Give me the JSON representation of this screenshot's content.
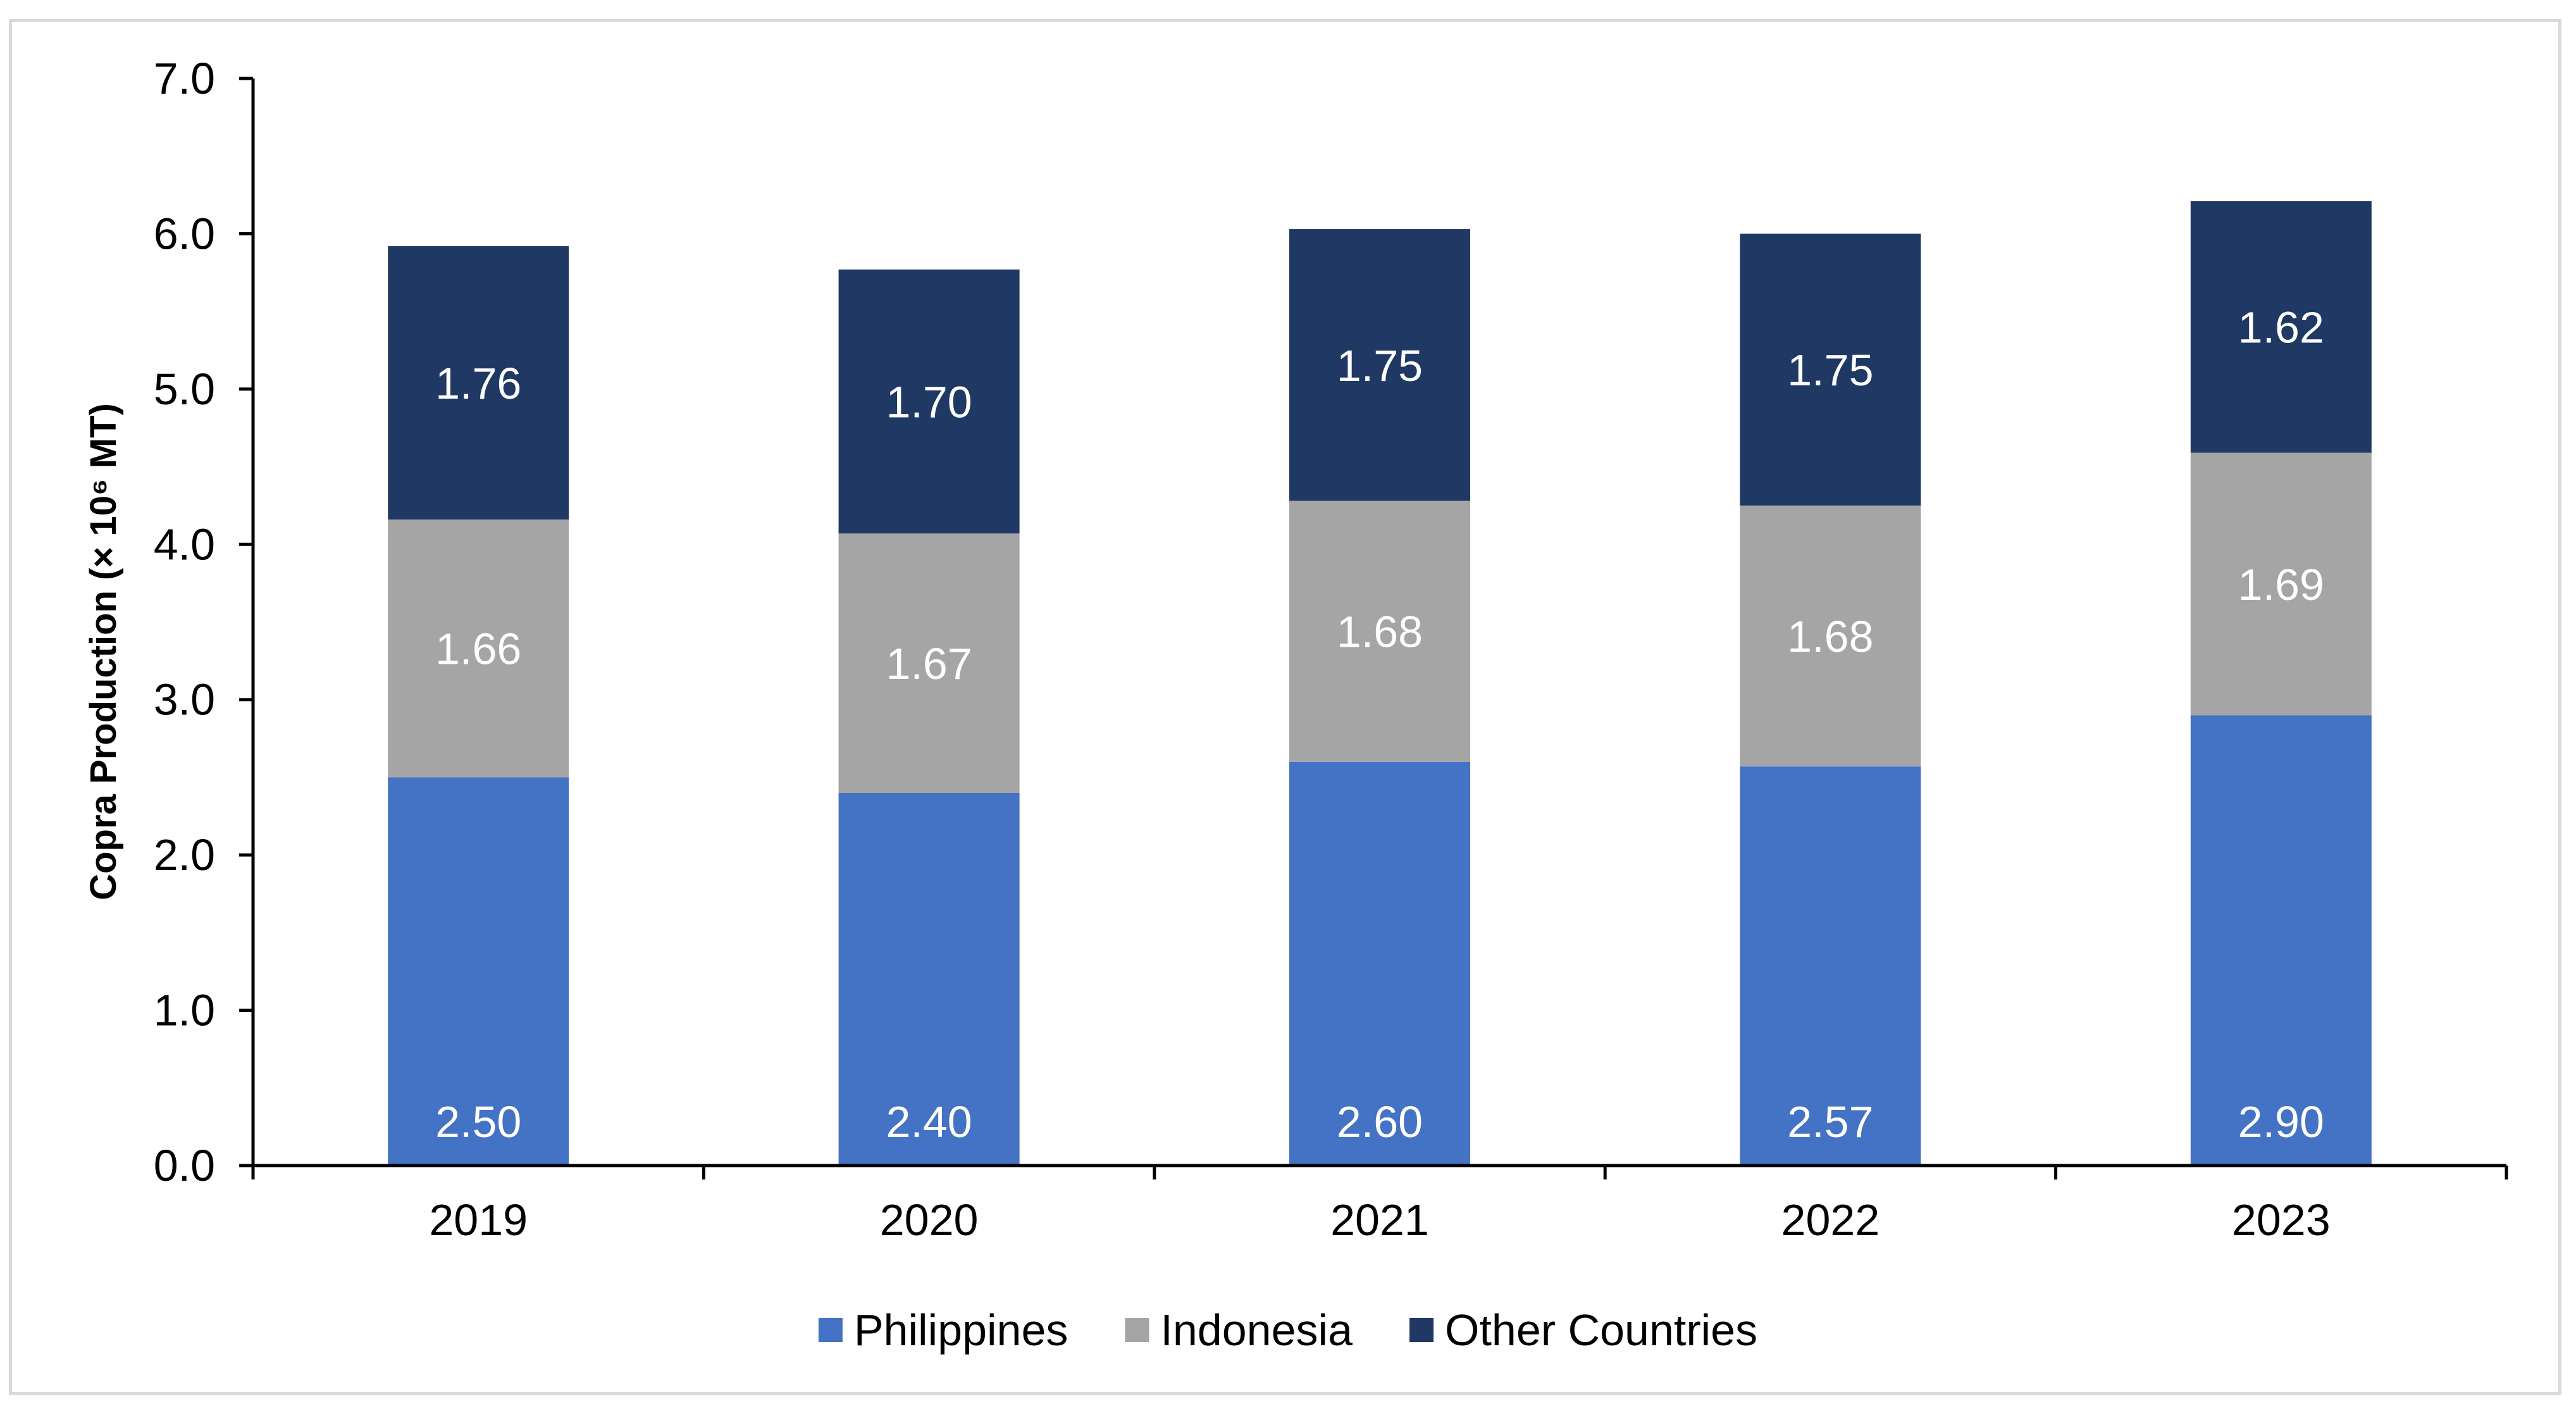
{
  "chart_data": {
    "type": "bar",
    "stacked": true,
    "categories": [
      "2019",
      "2020",
      "2021",
      "2022",
      "2023"
    ],
    "series": [
      {
        "name": "Philippines",
        "values": [
          2.5,
          2.4,
          2.6,
          2.57,
          2.9
        ],
        "labels": [
          "2.50",
          "2.40",
          "2.60",
          "2.57",
          "2.90"
        ],
        "color": "#4472c4"
      },
      {
        "name": "Indonesia",
        "values": [
          1.66,
          1.67,
          1.68,
          1.68,
          1.69
        ],
        "labels": [
          "1.66",
          "1.67",
          "1.68",
          "1.68",
          "1.69"
        ],
        "color": "#a5a5a5"
      },
      {
        "name": "Other Countries",
        "values": [
          1.76,
          1.7,
          1.75,
          1.75,
          1.62
        ],
        "labels": [
          "1.76",
          "1.70",
          "1.75",
          "1.75",
          "1.62"
        ],
        "color": "#203864"
      }
    ],
    "ylabel": "Copra Production (× 10⁶ MT)",
    "ylim": [
      0,
      7
    ],
    "yticks": [
      "0.0",
      "1.0",
      "2.0",
      "3.0",
      "4.0",
      "5.0",
      "6.0",
      "7.0"
    ],
    "grid": false,
    "legend_position": "bottom"
  }
}
